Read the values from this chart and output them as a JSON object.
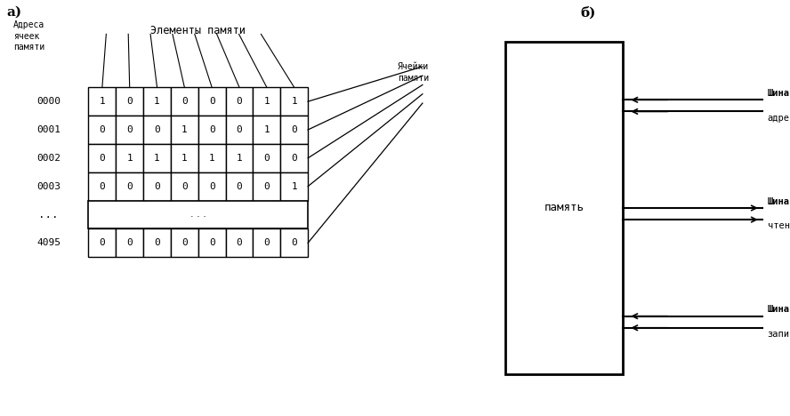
{
  "title_a": "а)",
  "title_b": "б)",
  "label_addresses": "Адреса\nячеек\nпамяти",
  "label_elements": "Элементы памяти",
  "label_cells": "Ячейки\nпамяти",
  "addresses": [
    "0000",
    "0001",
    "0002",
    "0003",
    "...",
    "4095"
  ],
  "rows": [
    [
      1,
      0,
      1,
      0,
      0,
      0,
      1,
      1
    ],
    [
      0,
      0,
      0,
      1,
      0,
      0,
      1,
      0
    ],
    [
      0,
      1,
      1,
      1,
      1,
      1,
      0,
      0
    ],
    [
      0,
      0,
      0,
      0,
      0,
      0,
      0,
      1
    ],
    null,
    [
      0,
      0,
      0,
      0,
      0,
      0,
      0,
      0
    ]
  ],
  "memory_label": "память",
  "bus_names": [
    "Шина",
    "Шина",
    "Шина"
  ],
  "bus_sublabels": [
    "адреса",
    "чтения",
    "записи"
  ],
  "bus_directions": [
    "in",
    "out",
    "in"
  ],
  "bg_color": "#ffffff",
  "text_color": "#000000"
}
